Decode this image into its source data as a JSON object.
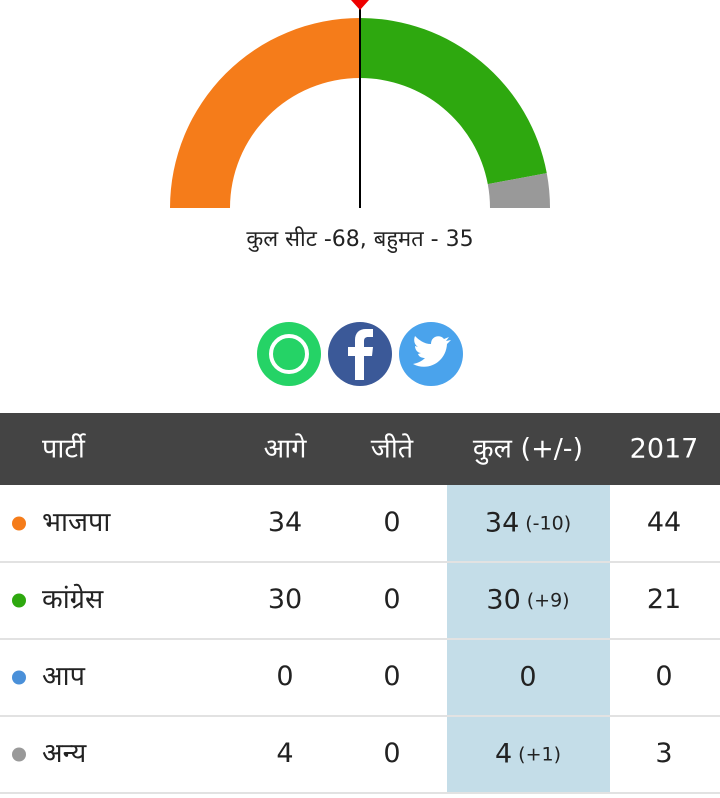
{
  "gauge": {
    "caption": "कुल सीट -68, बहुमत - 35"
  },
  "table": {
    "headers": [
      "पार्टी",
      "आगे",
      "जीते",
      "कुल (+/-)",
      "2017"
    ],
    "rows": [
      {
        "party": "भाजपा",
        "color": "#f57c1a",
        "leading": 34,
        "won": 0,
        "total": 34,
        "change": "(-10)",
        "prev": 44
      },
      {
        "party": "कांग्रेस",
        "color": "#2ea80f",
        "leading": 30,
        "won": 0,
        "total": 30,
        "change": "(+9)",
        "prev": 21
      },
      {
        "party": "आप",
        "color": "#4a90d9",
        "leading": 0,
        "won": 0,
        "total": 0,
        "prev": 0
      },
      {
        "party": "अन्य",
        "color": "#999999",
        "leading": 4,
        "won": 0,
        "total": 4,
        "change": "(+1)",
        "prev": 3
      }
    ]
  }
}
